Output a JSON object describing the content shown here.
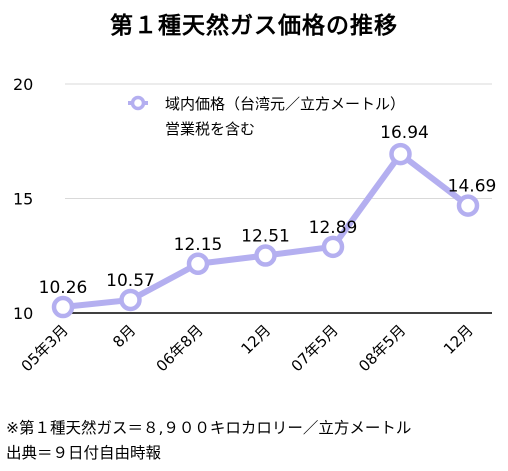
{
  "chart_data": {
    "type": "line",
    "title": "第１種天然ガス価格の推移",
    "xlabel": "",
    "ylabel": "",
    "categories": [
      "05年3月",
      "8月",
      "06年8月",
      "12月",
      "07年5月",
      "08年5月",
      "12月"
    ],
    "series": [
      {
        "name": "域内価格（台湾元／立方メートル）",
        "name_line2": "営業税を含む",
        "values": [
          10.26,
          10.57,
          12.15,
          12.51,
          12.89,
          16.94,
          14.69
        ],
        "labels": [
          "10.26",
          "10.57",
          "12.15",
          "12.51",
          "12.89",
          "16.94",
          "14.69"
        ],
        "color": "#b4aff0",
        "marker_fill": "#ffffff"
      }
    ],
    "yticks": [
      10,
      15,
      20
    ],
    "ytick_labels": [
      "10",
      "15",
      "20"
    ],
    "ylim": [
      10,
      20
    ],
    "baseline_color": "#000000",
    "gridlines": true,
    "grid_color": "#d9d9d9",
    "legend_position": "top-left"
  },
  "footnotes": {
    "line1": "※第１種天然ガス＝８,９００キロカロリー／立方メートル",
    "line2": "出典＝９日付自由時報"
  }
}
